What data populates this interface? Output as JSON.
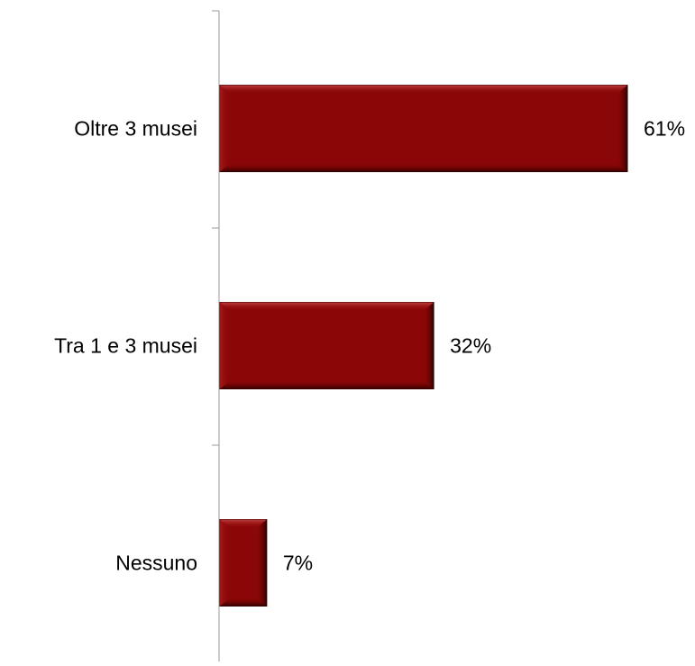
{
  "chart_data": {
    "type": "bar",
    "orientation": "horizontal",
    "categories": [
      "Oltre 3 musei",
      "Tra 1 e 3 musei",
      "Nessuno"
    ],
    "values": [
      61,
      32,
      7
    ],
    "value_labels": [
      "61%",
      "32%",
      "7%"
    ],
    "value_unit": "%",
    "xlim": [
      0,
      100
    ],
    "grid": false,
    "legend": "none",
    "colors": {
      "bar": "#8b0606",
      "bar_highlight": "#b02a2a",
      "bar_shadow": "#3a0000",
      "axis": "#9a9a9a"
    }
  }
}
